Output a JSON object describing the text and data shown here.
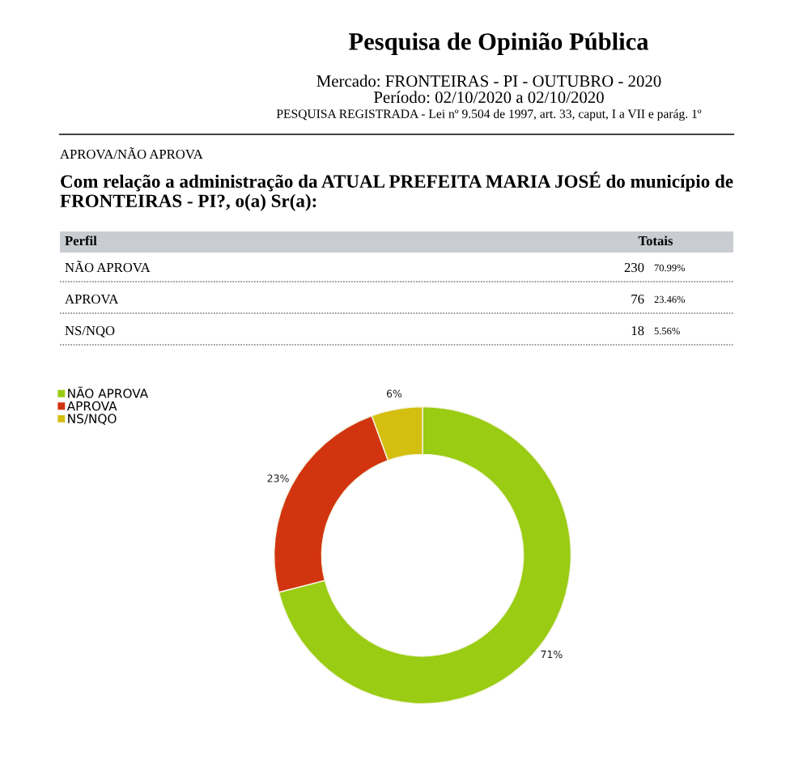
{
  "chart_data": [
    {
      "type": "other",
      "title": "Pesquisa de Opinião Pública",
      "subtitle": "Mercado: FRONTEIRAS - PI - OUTUBRO - 2020\nPeríodo: 02/10/2020 a 02/10/2020\nPESQUISA REGISTRADA - Lei nº 9.504 de 1997, art. 33, caput, I a VII e parág. 1º",
      "annotations": [
        "APROVA/NÃO APROVA",
        "Com relação a administração da ATUAL PREFEITA MARIA JOSÉ do município de FRONTEIRAS - PI?, o(a) Sr(a):",
        "Perfil",
        "Totais"
      ],
      "categories": [
        "NÃO APROVA",
        "APROVA",
        "NS/NQO"
      ],
      "series": [
        {
          "values": [
            230,
            76,
            18
          ]
        },
        {
          "values": [
            70.99,
            23.46,
            5.56
          ],
          "value_labels": [
            "70.99%",
            "23.46%",
            "5.56%"
          ]
        }
      ],
      "data_labels": true
    },
    {
      "type": "donut",
      "categories": [
        "NÃO APROVA",
        "APROVA",
        "NS/NQO"
      ],
      "values": [
        70.99,
        23.46,
        5.56
      ],
      "colors": [
        "#99cc12",
        "#d1340f",
        "#d4bf10"
      ],
      "value_labels": [
        "71%",
        "23%",
        "6%"
      ],
      "legend": "top left"
    }
  ]
}
